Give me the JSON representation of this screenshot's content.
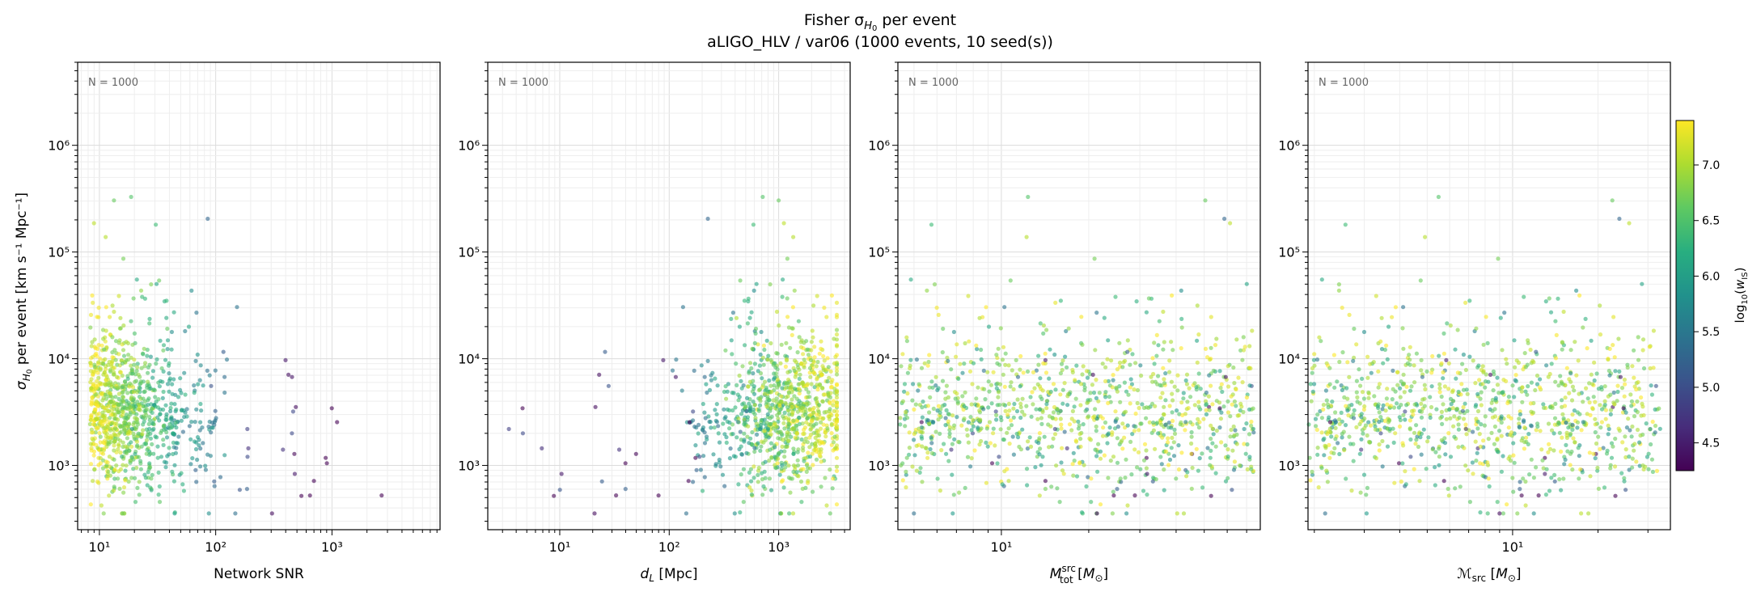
{
  "figure": {
    "title_line1": "Fisher σH₀ per event",
    "title_line2": "aLIGO_HLV / var06  (1000 events, 10 seed(s))",
    "ylabel": "σH₀ per event [km s⁻¹ Mpc⁻¹]",
    "y_scale": "log",
    "ylim": [
      250,
      6000000
    ],
    "y_ticks": [
      1000,
      10000,
      100000,
      1000000
    ],
    "y_tick_labels": [
      "10³",
      "10⁴",
      "10⁵",
      "10⁶"
    ]
  },
  "colorbar": {
    "label": "log₁₀(w_IS)",
    "range": [
      4.25,
      7.4
    ],
    "ticks": [
      4.5,
      5.0,
      5.5,
      6.0,
      6.5,
      7.0
    ],
    "tick_labels": [
      "4.5",
      "5.0",
      "5.5",
      "6.0",
      "6.5",
      "7.0"
    ],
    "colormap": "viridis"
  },
  "chart_data": [
    {
      "type": "scatter",
      "xlabel": "Network SNR",
      "x_scale": "log",
      "xlim": [
        6.5,
        8500
      ],
      "x_ticks": [
        10,
        100,
        1000
      ],
      "x_tick_labels": [
        "10¹",
        "10²",
        "10³"
      ],
      "annotation": "N = 1000",
      "point_count": 1000
    },
    {
      "type": "scatter",
      "xlabel": "dL [Mpc]",
      "x_scale": "log",
      "xlim": [
        2.2,
        4500
      ],
      "x_ticks": [
        10,
        100,
        1000
      ],
      "x_tick_labels": [
        "10¹",
        "10²",
        "10³"
      ],
      "annotation": "N = 1000",
      "point_count": 1000
    },
    {
      "type": "scatter",
      "xlabel": "M_tot^src [M⊙]",
      "x_scale": "log",
      "xlim": [
        4.4,
        78
      ],
      "x_ticks": [
        10
      ],
      "x_tick_labels": [
        "10¹"
      ],
      "annotation": "N = 1000",
      "point_count": 1000
    },
    {
      "type": "scatter",
      "xlabel": "ℳsrc [M⊙]",
      "x_scale": "log",
      "xlim": [
        1.9,
        36
      ],
      "x_ticks": [
        10
      ],
      "x_tick_labels": [
        "10¹"
      ],
      "annotation": "N = 1000",
      "point_count": 1000
    }
  ]
}
